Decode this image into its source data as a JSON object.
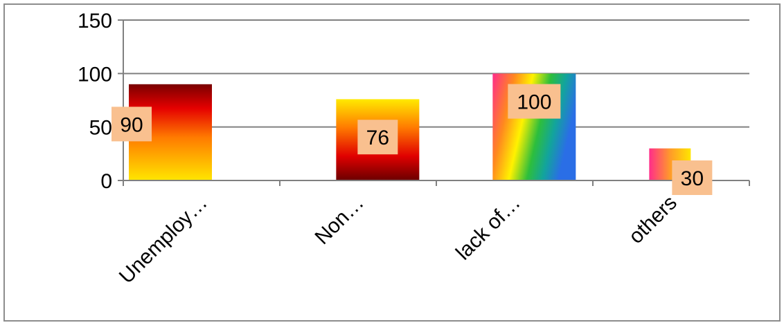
{
  "chart_data": {
    "type": "bar",
    "title": "",
    "xlabel": "",
    "ylabel": "",
    "categories": [
      "Unemploy…",
      "Non…",
      "lack of…",
      "others"
    ],
    "values": [
      90,
      76,
      100,
      30
    ],
    "data_labels": [
      "90",
      "76",
      "100",
      "30"
    ],
    "ylim": [
      0,
      150
    ],
    "yticks": [
      0,
      50,
      100,
      150
    ],
    "grid": true,
    "legend": "none",
    "colors": {
      "gridline": "#808080",
      "axis": "#808080",
      "label_box": "#F9C08F",
      "frame": "#8C8C8C"
    },
    "bar_fills": [
      "gradient-yellow-red-darkred",
      "gradient-darkred-red-yellow",
      "gradient-rainbow",
      "gradient-pink-yellow"
    ]
  }
}
